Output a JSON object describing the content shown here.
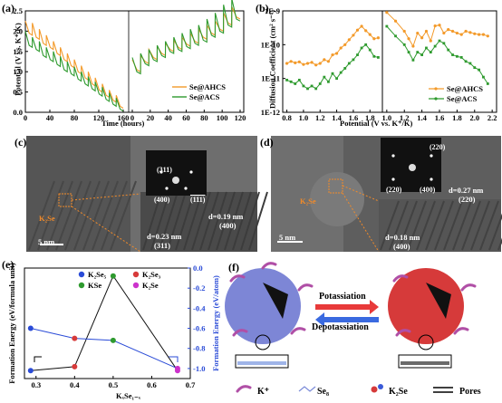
{
  "panels": {
    "a": "(a)",
    "b": "(b)",
    "c": "(c)",
    "d": "(d)",
    "e": "(e)",
    "f": "(f)"
  },
  "chart_data": [
    {
      "id": "a",
      "type": "line",
      "xlabel": "Time (hours)",
      "ylabel": "Potential (V vs. K⁺/K)",
      "left": {
        "xlim": [
          0,
          160
        ],
        "ylim": [
          0.0,
          2.5
        ],
        "xticks": [
          0,
          40,
          80,
          120,
          160
        ],
        "yticks": [
          "0.0",
          "0.5",
          "1.0",
          "1.5",
          "2.0",
          "2.5"
        ],
        "series": [
          {
            "name": "Se@AHCS",
            "color": "#f39a2a",
            "peaks": [
              2.25,
              2.2,
              2.05,
              1.9,
              1.75,
              1.6,
              1.45,
              1.3,
              1.15,
              1.0,
              0.85,
              0.7,
              0.55,
              0.42
            ],
            "troughs": [
              1.95,
              1.85,
              1.7,
              1.6,
              1.45,
              1.3,
              1.15,
              1.0,
              0.85,
              0.7,
              0.55,
              0.42,
              0.3,
              0.15
            ]
          },
          {
            "name": "Se@ACS",
            "color": "#2e9a2e",
            "peaks": [
              2.0,
              1.85,
              1.75,
              1.6,
              1.5,
              1.38,
              1.25,
              1.12,
              1.0,
              0.88,
              0.75,
              0.62,
              0.48,
              0.35
            ],
            "troughs": [
              1.65,
              1.55,
              1.4,
              1.3,
              1.18,
              1.05,
              0.95,
              0.82,
              0.7,
              0.58,
              0.45,
              0.32,
              0.2,
              0.08
            ]
          }
        ]
      },
      "right": {
        "xlim": [
          0,
          120
        ],
        "xticks": [
          0,
          20,
          40,
          60,
          80,
          100,
          120
        ],
        "series": [
          {
            "name": "Se@AHCS",
            "color": "#f39a2a",
            "peaks": [
              1.3,
              1.4,
              1.55,
              1.62,
              1.7,
              1.78,
              1.85,
              1.95,
              2.05,
              2.15,
              2.25,
              2.45,
              2.6
            ],
            "troughs": [
              1.05,
              1.25,
              1.35,
              1.45,
              1.55,
              1.6,
              1.68,
              1.75,
              1.85,
              1.95,
              2.05,
              2.2,
              2.35
            ]
          },
          {
            "name": "Se@ACS",
            "color": "#2e9a2e",
            "peaks": [
              1.35,
              1.45,
              1.55,
              1.65,
              1.75,
              1.85,
              1.95,
              2.05,
              2.15,
              2.3,
              2.45,
              2.65,
              2.8
            ],
            "troughs": [
              1.0,
              1.2,
              1.3,
              1.4,
              1.5,
              1.55,
              1.62,
              1.7,
              1.78,
              1.9,
              2.0,
              2.15,
              2.3
            ]
          }
        ]
      },
      "legend": [
        "Se@AHCS",
        "Se@ACS"
      ]
    },
    {
      "id": "b",
      "type": "line",
      "xlabel": "Potential (V vs. K⁺/K)",
      "ylabel": "Diffusion Coefficient (cm² s⁻¹)",
      "yscale": "log",
      "ylim": [
        1e-12,
        1e-09
      ],
      "yticks": [
        "1E-12",
        "1E-11",
        "1E-10",
        "1E-9"
      ],
      "left": {
        "xlim": [
          0.75,
          1.95
        ],
        "xticks": [
          "0.8",
          "1.0",
          "1.2",
          "1.4",
          "1.6",
          "1.8"
        ],
        "series": [
          {
            "name": "Se@AHCS",
            "color": "#f39a2a",
            "x": [
              0.8,
              0.85,
              0.9,
              0.95,
              1.0,
              1.05,
              1.1,
              1.15,
              1.2,
              1.25,
              1.3,
              1.35,
              1.4,
              1.45,
              1.5,
              1.55,
              1.6,
              1.65,
              1.7,
              1.75,
              1.8,
              1.85,
              1.9
            ],
            "y": [
              2.8e-11,
              3.2e-11,
              2.9e-11,
              3.1e-11,
              2.6e-11,
              2.8e-11,
              3e-11,
              2.5e-11,
              2.8e-11,
              3.6e-11,
              3.2e-11,
              5e-11,
              5.5e-11,
              8e-11,
              1e-10,
              1.4e-10,
              1.9e-10,
              2.7e-10,
              3.5e-10,
              2.6e-10,
              2e-10,
              1.5e-10,
              1.6e-10
            ]
          },
          {
            "name": "Se@ACS",
            "color": "#2e9a2e",
            "x": [
              0.8,
              0.85,
              0.9,
              0.95,
              1.0,
              1.05,
              1.1,
              1.15,
              1.2,
              1.25,
              1.3,
              1.35,
              1.4,
              1.45,
              1.5,
              1.55,
              1.6,
              1.65,
              1.7,
              1.75,
              1.8,
              1.85,
              1.9
            ],
            "y": [
              9e-12,
              8e-12,
              7e-12,
              9e-12,
              6e-12,
              5e-12,
              6e-12,
              5e-12,
              7e-12,
              1.1e-11,
              8e-12,
              1.4e-11,
              1e-11,
              1.5e-11,
              2e-11,
              2.8e-11,
              3.6e-11,
              5e-11,
              8e-11,
              1e-10,
              7e-11,
              4.5e-11,
              4.2e-11
            ]
          }
        ]
      },
      "right": {
        "xlim": [
          0.95,
          2.25
        ],
        "xticks": [
          "1.0",
          "1.2",
          "1.4",
          "1.6",
          "1.8",
          "2.0",
          "2.2"
        ],
        "series": [
          {
            "name": "Se@AHCS",
            "color": "#f39a2a",
            "x": [
              1.0,
              1.1,
              1.2,
              1.25,
              1.3,
              1.35,
              1.4,
              1.45,
              1.5,
              1.55,
              1.6,
              1.65,
              1.7,
              1.75,
              1.8,
              1.85,
              1.9,
              1.95,
              2.0,
              2.05,
              2.1,
              2.15
            ],
            "y": [
              9e-10,
              5e-10,
              2.5e-10,
              1.5e-10,
              9e-11,
              2.2e-10,
              1.6e-10,
              2.5e-10,
              1.3e-10,
              3.6e-10,
              3.8e-10,
              2.2e-10,
              2.8e-10,
              2.5e-10,
              2.2e-10,
              2e-10,
              2.5e-10,
              2.3e-10,
              2.1e-10,
              2e-10,
              2e-10,
              1.8e-10
            ]
          },
          {
            "name": "Se@ACS",
            "color": "#2e9a2e",
            "x": [
              1.0,
              1.1,
              1.2,
              1.25,
              1.3,
              1.35,
              1.4,
              1.45,
              1.5,
              1.55,
              1.6,
              1.65,
              1.7,
              1.75,
              1.8,
              1.85,
              1.9,
              1.95,
              2.0,
              2.05,
              2.1,
              2.15
            ],
            "y": [
              3.5e-10,
              1.8e-10,
              1e-10,
              6e-11,
              3.5e-11,
              6e-11,
              5e-11,
              8e-11,
              6e-11,
              9e-11,
              1.3e-10,
              1.1e-10,
              7e-11,
              5e-11,
              4.5e-11,
              4.2e-11,
              3.2e-11,
              2.8e-11,
              2.1e-11,
              1.8e-11,
              1.1e-11,
              7e-12
            ]
          }
        ]
      },
      "legend": [
        "Se@AHCS",
        "Se@ACS"
      ]
    },
    {
      "id": "e",
      "type": "line",
      "xlabel": "KₓSe₁₋ₓ",
      "ylabel": "Formation Energy (eV/formula unit)",
      "y2label": "Formation Energy (eV/atom)",
      "xlim": [
        0.27,
        0.7
      ],
      "xticks": [
        "0.3",
        "0.4",
        "0.5",
        "0.6",
        "0.7"
      ],
      "ylim": [
        -4.6,
        -1.8
      ],
      "y2lim": [
        -1.1,
        0.0
      ],
      "y2ticks": [
        "0.0",
        "-0.2",
        "-0.4",
        "-0.6",
        "-0.8",
        "-1.0"
      ],
      "legend": [
        "K₂Se₅",
        "K₂Se₃",
        "KSe",
        "K₂Se"
      ],
      "legend_colors": [
        "#2a4bd7",
        "#d73a3a",
        "#2e9a2e",
        "#cc33cc"
      ],
      "points_left": {
        "x": [
          0.286,
          0.4,
          0.5,
          0.667
        ],
        "y": [
          -4.4,
          -4.3,
          -2.0,
          -4.4
        ],
        "line_color": "#111111"
      },
      "points_right": {
        "x": [
          0.286,
          0.4,
          0.5,
          0.667
        ],
        "y": [
          -0.6,
          -0.7,
          -0.72,
          -1.0
        ],
        "line_color": "#2a4bd7"
      }
    }
  ],
  "tem": {
    "c": {
      "fft_labels": [
        "(311)",
        "(400)",
        "(111)"
      ],
      "d1": "d=0.19 nm",
      "d1b": "(400)",
      "d2": "d=0.23 nm",
      "d2b": "(311)",
      "material": "K₂Se",
      "scale": "5 nm"
    },
    "d": {
      "fft_labels": [
        "(220)",
        "(220)",
        "(400)"
      ],
      "d1": "d=0.27 nm",
      "d1b": "(220)",
      "d2": "d=0.18 nm",
      "d2b": "(400)",
      "material": "K₂Se",
      "scale": "5 nm"
    }
  },
  "schematic": {
    "arrow_forward": "Potassiation",
    "arrow_back": "Depotassiation",
    "legend": [
      "K⁺",
      "Se₈",
      "K₂Se",
      "Pores"
    ],
    "colors": {
      "left_sphere": "#7d86d6",
      "right_sphere": "#d63a3a",
      "kplus": "#b04fa6",
      "forward_arrow": "#e83a3a",
      "back_arrow": "#3a6ae0"
    }
  }
}
